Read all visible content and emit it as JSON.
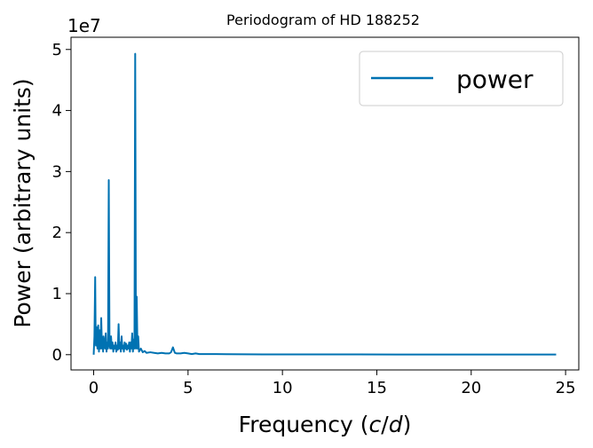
{
  "chart_data": {
    "type": "line",
    "title": "Periodogram of HD 188252",
    "xlabel": "Frequency ($c/d$)",
    "xlabel_parts": {
      "prefix": "Frequency (",
      "var1": "c",
      "slash": "/",
      "var2": "d",
      "suffix": ")"
    },
    "ylabel": "Power (arbitrary units)",
    "y_multiplier_label": "1e7",
    "xlim": [
      -1.2,
      25.7
    ],
    "ylim": [
      -0.25,
      5.2
    ],
    "y_scale_note": "values in units of 1e7",
    "x_ticks": [
      0,
      5,
      10,
      15,
      20,
      25
    ],
    "x_tick_labels": [
      "0",
      "5",
      "10",
      "15",
      "20",
      "25"
    ],
    "y_ticks": [
      0,
      1,
      2,
      3,
      4,
      5
    ],
    "y_tick_labels": [
      "0",
      "1",
      "2",
      "3",
      "4",
      "5"
    ],
    "grid": false,
    "legend_position": "top-right",
    "series": [
      {
        "name": "power",
        "color": "#0072b2",
        "x": [
          0.0,
          0.04,
          0.08,
          0.1,
          0.12,
          0.16,
          0.2,
          0.24,
          0.28,
          0.3,
          0.32,
          0.36,
          0.4,
          0.44,
          0.48,
          0.5,
          0.52,
          0.56,
          0.6,
          0.64,
          0.68,
          0.72,
          0.76,
          0.8,
          0.84,
          0.88,
          0.92,
          0.96,
          1.0,
          1.04,
          1.08,
          1.12,
          1.16,
          1.2,
          1.24,
          1.28,
          1.32,
          1.36,
          1.4,
          1.44,
          1.48,
          1.52,
          1.56,
          1.6,
          1.64,
          1.68,
          1.72,
          1.76,
          1.8,
          1.84,
          1.88,
          1.92,
          1.96,
          2.0,
          2.04,
          2.08,
          2.12,
          2.16,
          2.2,
          2.24,
          2.28,
          2.32,
          2.36,
          2.4,
          2.5,
          2.6,
          2.7,
          2.8,
          3.0,
          3.2,
          3.4,
          3.6,
          3.8,
          4.0,
          4.1,
          4.2,
          4.3,
          4.4,
          4.6,
          4.8,
          5.0,
          5.2,
          5.4,
          5.6,
          6.0,
          6.5,
          7.0,
          8.0,
          9.0,
          10.0,
          12.0,
          14.0,
          16.0,
          18.0,
          20.0,
          22.0,
          24.0,
          24.5
        ],
        "values": [
          0.0,
          0.3,
          1.27,
          0.5,
          0.15,
          0.45,
          0.1,
          0.48,
          0.05,
          0.2,
          0.4,
          0.1,
          0.6,
          0.1,
          0.25,
          0.05,
          0.3,
          0.2,
          0.1,
          0.35,
          0.05,
          0.2,
          0.1,
          2.86,
          0.15,
          0.1,
          0.3,
          0.1,
          0.2,
          0.05,
          0.15,
          0.1,
          0.2,
          0.05,
          0.15,
          0.08,
          0.5,
          0.1,
          0.2,
          0.05,
          0.3,
          0.1,
          0.15,
          0.05,
          0.2,
          0.1,
          0.18,
          0.08,
          0.15,
          0.1,
          0.2,
          0.05,
          0.2,
          0.1,
          0.35,
          0.05,
          0.25,
          0.1,
          4.93,
          0.1,
          0.95,
          0.1,
          0.3,
          0.05,
          0.1,
          0.04,
          0.06,
          0.03,
          0.04,
          0.03,
          0.02,
          0.03,
          0.02,
          0.02,
          0.04,
          0.12,
          0.03,
          0.02,
          0.02,
          0.03,
          0.02,
          0.01,
          0.02,
          0.01,
          0.01,
          0.01,
          0.008,
          0.006,
          0.005,
          0.005,
          0.004,
          0.004,
          0.003,
          0.003,
          0.003,
          0.003,
          0.002,
          0.002
        ]
      }
    ]
  }
}
